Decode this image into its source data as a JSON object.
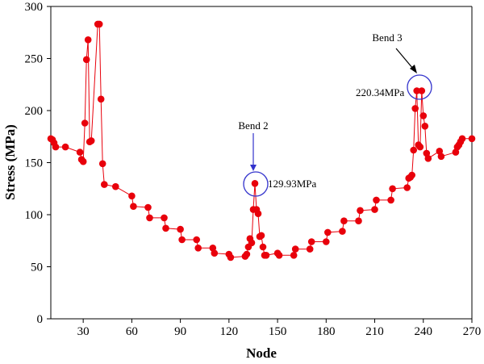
{
  "chart_data": {
    "type": "line",
    "xlabel": "Node",
    "ylabel": "Stress (MPa)",
    "xlim": [
      10,
      270
    ],
    "ylim": [
      0,
      300
    ],
    "xticks": [
      30,
      60,
      90,
      120,
      150,
      180,
      210,
      240,
      270
    ],
    "yticks": [
      0,
      50,
      100,
      150,
      200,
      250,
      300
    ],
    "grid": false,
    "legend": "none",
    "series": [
      {
        "color": "#e8000b",
        "marker": "circle",
        "x": [
          10,
          11,
          12,
          13,
          19,
          28,
          29,
          30,
          31,
          32,
          33,
          34,
          35,
          39,
          40,
          41,
          42,
          43,
          50,
          60,
          61,
          70,
          71,
          80,
          81,
          90,
          91,
          100,
          101,
          110,
          111,
          120,
          121,
          130,
          131,
          132,
          133,
          134,
          135,
          136,
          137,
          138,
          139,
          140,
          141,
          142,
          143,
          150,
          151,
          160,
          161,
          170,
          171,
          180,
          181,
          190,
          191,
          200,
          201,
          210,
          211,
          220,
          221,
          230,
          231,
          232,
          233,
          234,
          235,
          236,
          237,
          238,
          239,
          240,
          241,
          242,
          243,
          250,
          251,
          260,
          261,
          262,
          263,
          264,
          270
        ],
        "y": [
          173,
          172,
          169,
          165,
          165,
          160,
          153,
          151,
          188,
          249,
          268,
          170,
          171,
          283,
          283,
          211,
          149,
          129,
          127,
          118,
          108,
          107,
          97,
          97,
          87,
          86,
          76,
          76,
          68,
          68,
          63,
          62,
          59,
          60,
          62,
          69,
          77,
          73,
          105,
          130,
          105,
          101,
          79,
          80,
          69,
          61,
          61,
          63,
          61,
          61,
          67,
          67,
          74,
          74,
          83,
          84,
          94,
          94,
          104,
          105,
          114,
          114,
          125,
          126,
          135,
          136,
          138,
          162,
          202,
          219,
          167,
          165,
          219,
          195,
          185,
          159,
          154,
          161,
          156,
          160,
          165,
          167,
          170,
          173,
          173
        ]
      }
    ],
    "annotations": [
      {
        "label": "Bend 2",
        "value_label": "129.93MPa",
        "x": 136,
        "y": 130
      },
      {
        "label": "Bend 3",
        "value_label": "220.34MPa",
        "x": 237,
        "y": 220
      }
    ]
  }
}
